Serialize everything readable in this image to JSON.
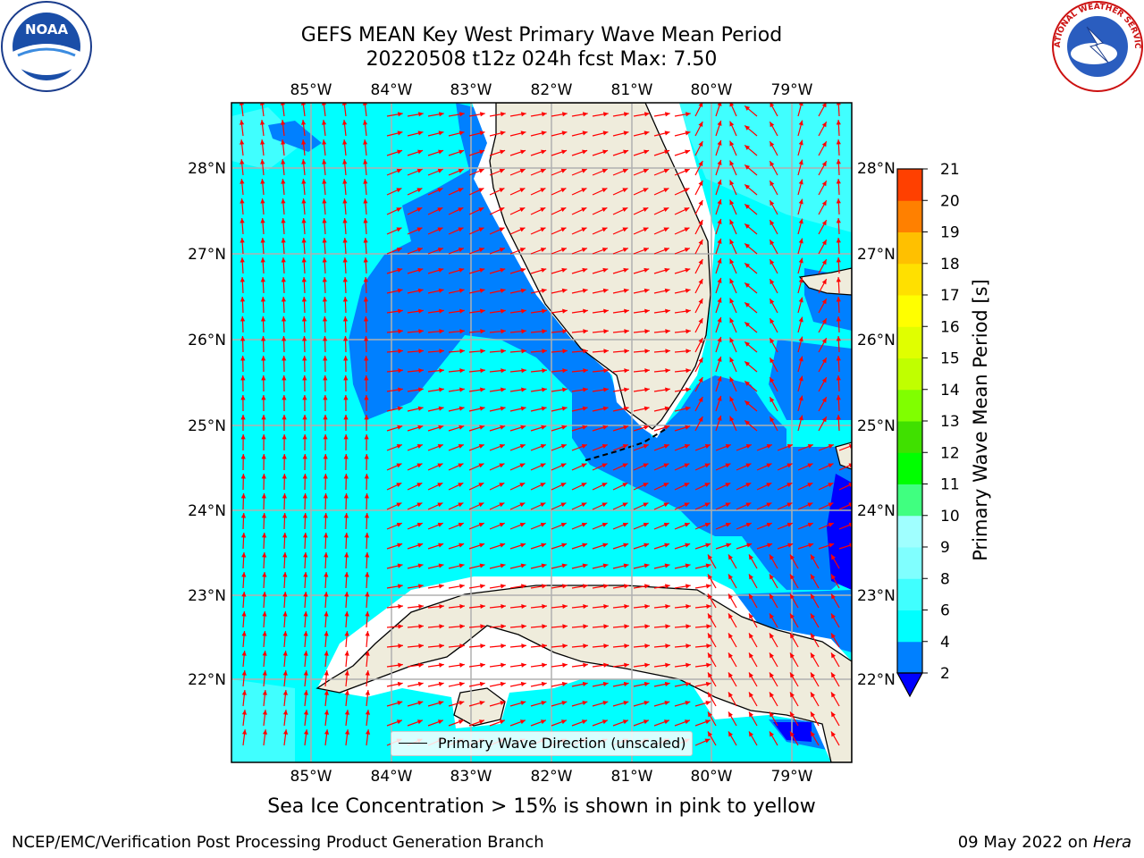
{
  "header": {
    "title_line1": "GEFS MEAN Key West Primary Wave Mean Period",
    "title_line2": "20220508 t12z 024h fcst   Max: 7.50"
  },
  "logos": {
    "left": {
      "icon": "noaa-logo",
      "text": "NOAA"
    },
    "right": {
      "icon": "nws-logo",
      "text": "NATIONAL WEATHER SERVICE"
    }
  },
  "map": {
    "lon_labels": [
      "85°W",
      "84°W",
      "83°W",
      "82°W",
      "81°W",
      "80°W",
      "79°W"
    ],
    "lat_labels_left": [
      "28°N",
      "27°N",
      "26°N",
      "25°N",
      "24°N",
      "23°N",
      "22°N"
    ],
    "lat_labels_right": [
      "28°N",
      "27°N",
      "26°N",
      "25°N",
      "24°N",
      "23°N",
      "22°N"
    ],
    "legend_text": "Primary Wave Direction (unscaled)",
    "colors": {
      "land": "#efecdc",
      "water_light": "#00ffff",
      "water_mid": "#0080ff",
      "water_dark": "#0000ff",
      "arrow": "#ff0000",
      "grid": "#b0b0b0"
    }
  },
  "colorbar": {
    "label": "Primary Wave Mean Period [s]",
    "ticks": [
      "2",
      "4",
      "6",
      "8",
      "9",
      "10",
      "11",
      "12",
      "13",
      "14",
      "15",
      "16",
      "17",
      "18",
      "19",
      "20",
      "21"
    ],
    "colors": [
      "#0080ff",
      "#00ffff",
      "#40ffff",
      "#80ffff",
      "#a0ffff",
      "#40ff80",
      "#00ff00",
      "#40e000",
      "#80ff00",
      "#c0ff00",
      "#e0ff00",
      "#ffff00",
      "#ffe000",
      "#ffc000",
      "#ff8000",
      "#ff4000",
      "#ff0000"
    ],
    "under_color": "#0000ff"
  },
  "footer": {
    "ice_note": "Sea Ice Concentration > 15% is shown in pink to yellow",
    "left": "NCEP/EMC/Verification Post Processing Product Generation Branch",
    "right_date": "09 May 2022 on ",
    "right_host": "Hera"
  }
}
